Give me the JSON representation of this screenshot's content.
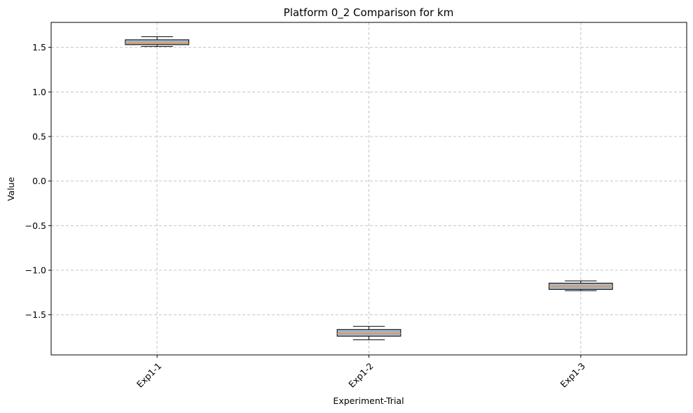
{
  "chart_data": {
    "type": "box",
    "title": "Platform 0_2 Comparison for km",
    "xlabel": "Experiment-Trial",
    "ylabel": "Value",
    "ylim": [
      -1.95,
      1.78
    ],
    "yticks": [
      1.5,
      1.0,
      0.5,
      0.0,
      -0.5,
      -1.0,
      -1.5
    ],
    "ytick_labels": [
      "1.5",
      "1.0",
      "0.5",
      "0.0",
      "−0.5",
      "−1.0",
      "−1.5"
    ],
    "grid": true,
    "categories": [
      "Exp1-1",
      "Exp1-2",
      "Exp1-3"
    ],
    "boxes": [
      {
        "category": "Exp1-1",
        "whisker_low": 1.51,
        "q1": 1.53,
        "median": 1.545,
        "q3": 1.585,
        "whisker_high": 1.62
      },
      {
        "category": "Exp1-2",
        "whisker_low": -1.78,
        "q1": -1.74,
        "median": -1.71,
        "q3": -1.665,
        "whisker_high": -1.63
      },
      {
        "category": "Exp1-3",
        "whisker_low": -1.23,
        "q1": -1.215,
        "median": -1.18,
        "q3": -1.145,
        "whisker_high": -1.12
      }
    ],
    "colors": {
      "box_fill": "#a5b4c6",
      "box_edge": "#000000",
      "median": "#ff8c1a",
      "grid": "#c4c4c4"
    }
  }
}
